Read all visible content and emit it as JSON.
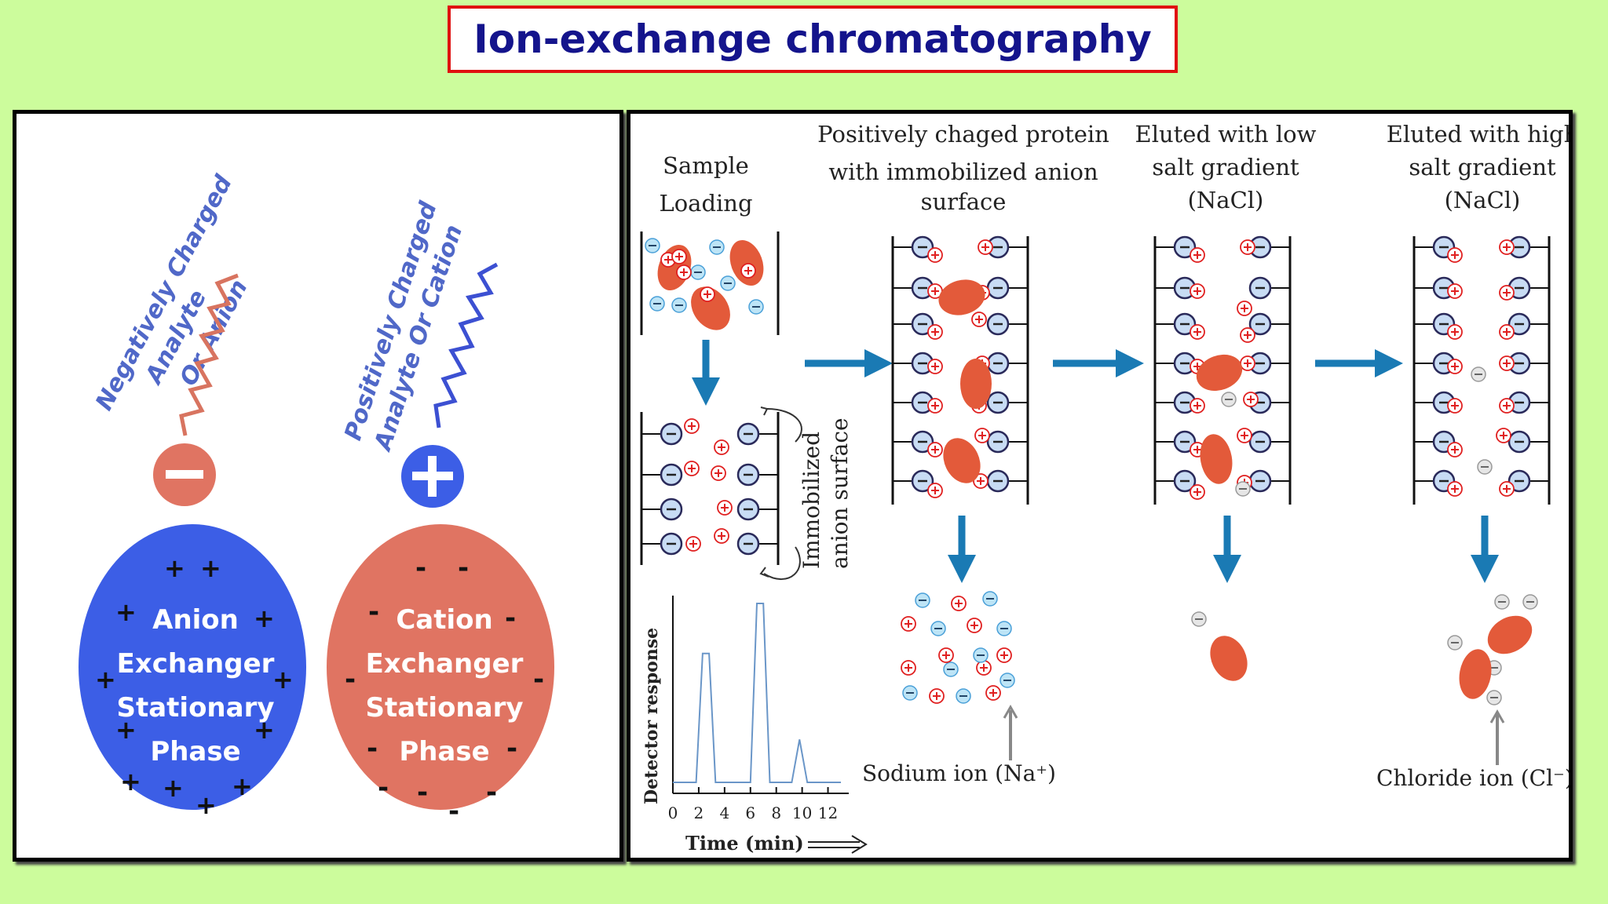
{
  "title": "Ion-exchange chromatography",
  "left": {
    "analyte_neg": [
      "Negatively Charged",
      "Analyte",
      "Or Anion"
    ],
    "analyte_pos": [
      "Positively Charged",
      "Analyte Or Cation"
    ],
    "anion_exchanger": [
      "Anion",
      "Exchanger",
      "Stationary",
      "Phase"
    ],
    "cation_exchanger": [
      "Cation",
      "Exchanger",
      "Stationary",
      "Phase"
    ],
    "colors": {
      "blue": "#3c5ee6",
      "salmon": "#e07462",
      "text_blue": "#5068c8"
    }
  },
  "right": {
    "step1": [
      "Sample",
      "Loading"
    ],
    "step2": [
      "Positively chaged protein",
      "with immobilized anion",
      "surface"
    ],
    "step3": [
      "Eluted with low",
      "salt gradient",
      "(NaCl)"
    ],
    "step4": [
      "Eluted with high",
      "salt gradient",
      "(NaCl)"
    ],
    "immobilized_label": [
      "Immobilized",
      "anion surface"
    ],
    "sodium_label": "Sodium ion (Na⁺)",
    "chloride_label": "Chloride ion (Cl⁻)",
    "colors": {
      "arrow": "#1a7ab4",
      "protein": "#e35a3a",
      "plus": "#e02020",
      "minus_fill": "#c8dcf4"
    }
  },
  "chart_data": {
    "type": "line",
    "xlabel": "Time (min)",
    "ylabel": "Detector response",
    "xticks": [
      "0",
      "2",
      "4",
      "6",
      "8",
      "10",
      "12"
    ],
    "xlim": [
      0,
      13
    ],
    "x": [
      0,
      1.8,
      2.3,
      2.8,
      3.3,
      6.0,
      6.5,
      7.0,
      7.5,
      9.2,
      9.8,
      10.4,
      13
    ],
    "y": [
      0,
      0,
      0.72,
      0.72,
      0,
      0,
      1.0,
      1.0,
      0,
      0,
      0.24,
      0,
      0
    ]
  }
}
